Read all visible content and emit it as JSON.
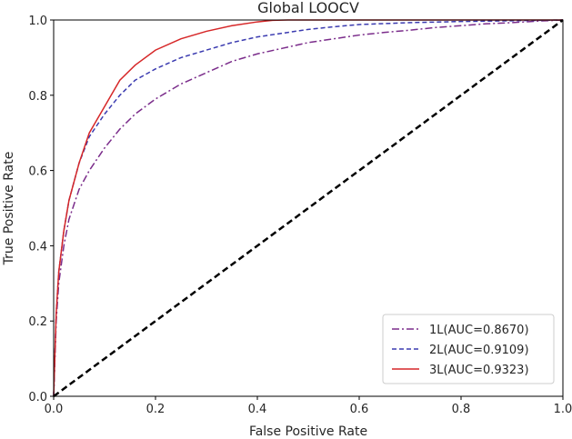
{
  "chart_data": {
    "type": "line",
    "title": "Global LOOCV",
    "xlabel": "False Positive Rate",
    "ylabel": "True Positive Rate",
    "xlim": [
      0.0,
      1.0
    ],
    "ylim": [
      0.0,
      1.0
    ],
    "x_ticks": [
      "0.0",
      "0.2",
      "0.4",
      "0.6",
      "0.8",
      "1.0"
    ],
    "y_ticks": [
      "0.0",
      "0.2",
      "0.4",
      "0.6",
      "0.8",
      "1.0"
    ],
    "grid": false,
    "legend_position": "lower-right",
    "series": [
      {
        "name": "1L(AUC=0.8670)",
        "color": "#7b2d8b",
        "style": "dashdot",
        "x": [
          0,
          0.005,
          0.01,
          0.02,
          0.03,
          0.05,
          0.07,
          0.1,
          0.13,
          0.16,
          0.2,
          0.25,
          0.3,
          0.35,
          0.4,
          0.45,
          0.5,
          0.55,
          0.6,
          0.65,
          0.7,
          0.75,
          0.8,
          0.85,
          0.9,
          0.95,
          1.0
        ],
        "y": [
          0,
          0.2,
          0.3,
          0.4,
          0.47,
          0.55,
          0.6,
          0.66,
          0.71,
          0.75,
          0.79,
          0.83,
          0.86,
          0.89,
          0.91,
          0.925,
          0.94,
          0.95,
          0.96,
          0.967,
          0.973,
          0.98,
          0.985,
          0.99,
          0.993,
          0.997,
          1.0
        ]
      },
      {
        "name": "2L(AUC=0.9109)",
        "color": "#3b3bb0",
        "style": "dashed",
        "x": [
          0,
          0.005,
          0.01,
          0.02,
          0.03,
          0.05,
          0.07,
          0.1,
          0.13,
          0.16,
          0.2,
          0.25,
          0.3,
          0.35,
          0.4,
          0.45,
          0.5,
          0.55,
          0.6,
          0.7,
          0.8,
          0.9,
          1.0
        ],
        "y": [
          0,
          0.22,
          0.33,
          0.44,
          0.52,
          0.62,
          0.69,
          0.75,
          0.8,
          0.84,
          0.87,
          0.9,
          0.92,
          0.94,
          0.955,
          0.965,
          0.975,
          0.982,
          0.988,
          0.993,
          0.996,
          0.998,
          1.0
        ]
      },
      {
        "name": "3L(AUC=0.9323)",
        "color": "#d62728",
        "style": "solid",
        "x": [
          0,
          0.005,
          0.01,
          0.02,
          0.03,
          0.05,
          0.07,
          0.1,
          0.13,
          0.16,
          0.2,
          0.25,
          0.3,
          0.35,
          0.4,
          0.43,
          0.46,
          0.5,
          0.6,
          0.7,
          0.8,
          0.9,
          1.0
        ],
        "y": [
          0,
          0.22,
          0.33,
          0.44,
          0.52,
          0.62,
          0.7,
          0.77,
          0.84,
          0.88,
          0.92,
          0.95,
          0.97,
          0.985,
          0.995,
          0.999,
          1.0,
          1.0,
          1.0,
          1.0,
          1.0,
          1.0,
          1.0
        ]
      },
      {
        "name": "",
        "color": "#000000",
        "style": "diagonal",
        "x": [
          0,
          1
        ],
        "y": [
          0,
          1
        ]
      }
    ]
  }
}
